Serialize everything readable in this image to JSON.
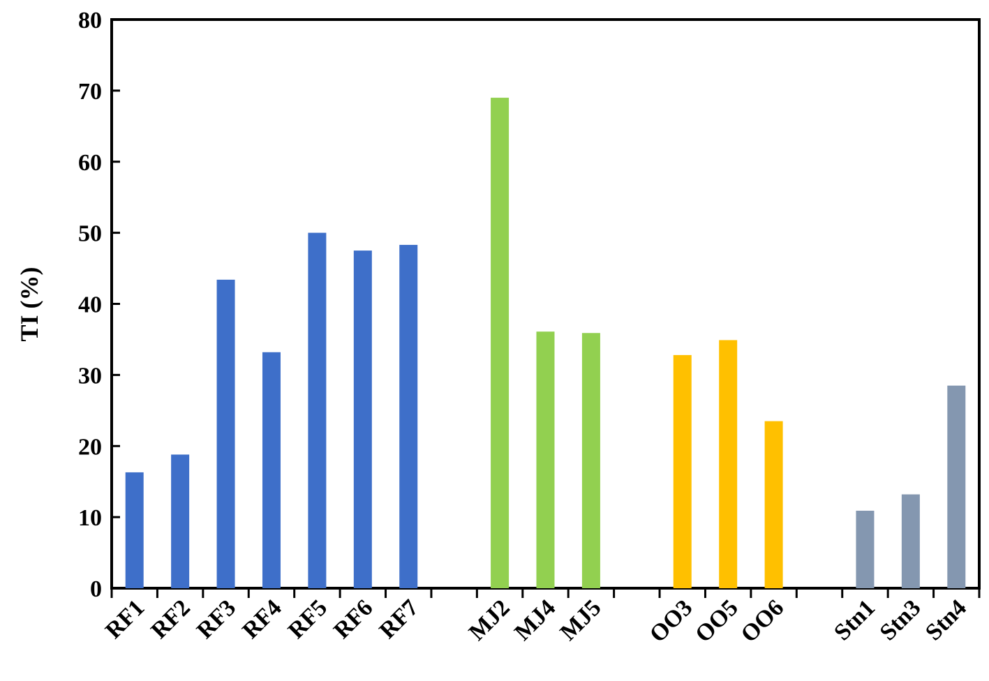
{
  "chart_data": {
    "type": "bar",
    "title": "",
    "xlabel": "",
    "ylabel": "TI (%)",
    "ylim": [
      0,
      80
    ],
    "yticks": [
      0,
      10,
      20,
      30,
      40,
      50,
      60,
      70,
      80
    ],
    "grid": false,
    "legend": "none",
    "categories": [
      "RF1",
      "RF2",
      "RF3",
      "RF4",
      "RF5",
      "RF6",
      "RF7",
      "",
      "MJ2",
      "MJ4",
      "MJ5",
      "",
      "OO3",
      "OO5",
      "OO6",
      "",
      "Stn1",
      "Stn3",
      "Stn4"
    ],
    "values": [
      16.3,
      18.8,
      43.4,
      33.2,
      50.0,
      47.5,
      48.3,
      null,
      69.0,
      36.1,
      35.9,
      null,
      32.8,
      34.9,
      23.5,
      null,
      10.9,
      13.2,
      28.5
    ],
    "colors": [
      "#3e6fc9",
      "#3e6fc9",
      "#3e6fc9",
      "#3e6fc9",
      "#3e6fc9",
      "#3e6fc9",
      "#3e6fc9",
      "",
      "#92d050",
      "#92d050",
      "#92d050",
      "",
      "#ffc000",
      "#ffc000",
      "#ffc000",
      "",
      "#8497b0",
      "#8497b0",
      "#8497b0"
    ]
  }
}
